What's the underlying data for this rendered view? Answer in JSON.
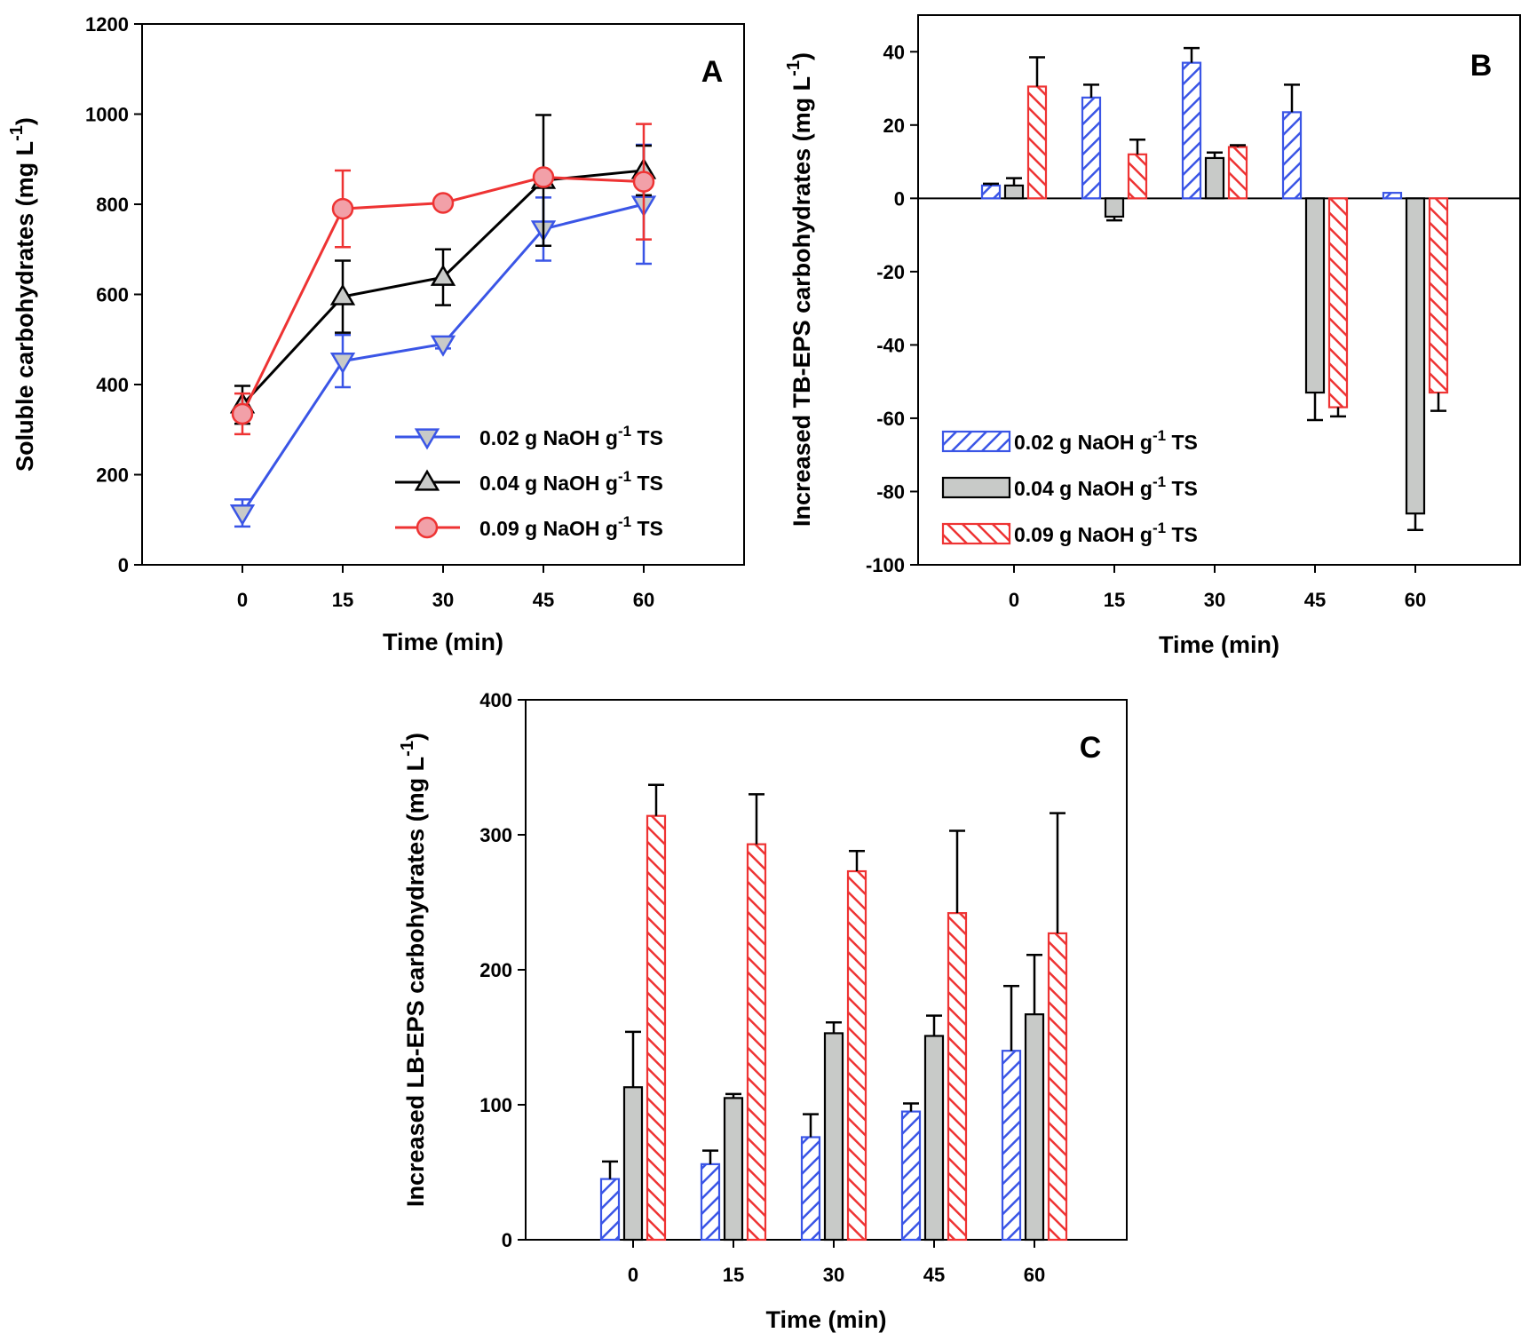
{
  "chart_data": [
    {
      "panel": "A",
      "type": "line",
      "xlabel": "Time (min)",
      "ylabel": "Soluble carbohydrates (mg L",
      "ylabel_sup": "-1",
      "ylabel_close": ")",
      "x": [
        0,
        15,
        30,
        45,
        60
      ],
      "xlim": [
        -15,
        75
      ],
      "ylim": [
        0,
        1200
      ],
      "yticks": [
        0,
        200,
        400,
        600,
        800,
        1000,
        1200
      ],
      "grid": false,
      "legend_position": "bottom-right",
      "series": [
        {
          "name": "0.02 g NaOH g",
          "name_sup": "-1",
          "name_tail": " TS",
          "color": "#3a55e6",
          "fill": "#c8cac8",
          "marker": "triangle-down",
          "values": [
            115,
            452,
            490,
            745,
            800
          ],
          "errors": [
            30,
            58,
            10,
            70,
            132
          ]
        },
        {
          "name": "0.04 g NaOH g",
          "name_sup": "-1",
          "name_tail": " TS",
          "color": "#000000",
          "fill": "#c8cac8",
          "marker": "triangle-up",
          "values": [
            355,
            595,
            638,
            853,
            875
          ],
          "errors": [
            42,
            80,
            62,
            145,
            55
          ]
        },
        {
          "name": "0.09 g NaOH g",
          "name_sup": "-1",
          "name_tail": " TS",
          "color": "#ee3333",
          "fill": "#f2a0a8",
          "marker": "circle",
          "values": [
            335,
            790,
            803,
            860,
            850
          ],
          "errors": [
            45,
            85,
            12,
            12,
            128
          ]
        }
      ]
    },
    {
      "panel": "B",
      "type": "bar",
      "xlabel": "Time (min)",
      "ylabel": "Increased TB-EPS carbohydrates (mg L",
      "ylabel_sup": "-1",
      "ylabel_close": ")",
      "categories": [
        "0",
        "15",
        "30",
        "45",
        "60"
      ],
      "ylim": [
        -100,
        50
      ],
      "yticks": [
        -100,
        -80,
        -60,
        -40,
        -20,
        0,
        20,
        40
      ],
      "grid": false,
      "legend_position": "bottom-left",
      "series": [
        {
          "name": "0.02 g NaOH g",
          "name_sup": "-1",
          "name_tail": " TS",
          "color": "#3a55e6",
          "pattern": "hatch-right",
          "values": [
            3.5,
            27.5,
            37,
            23.5,
            1.5
          ],
          "errors": [
            0.5,
            3.5,
            4,
            7.5,
            0
          ]
        },
        {
          "name": "0.04 g NaOH g",
          "name_sup": "-1",
          "name_tail": " TS",
          "color": "#000000",
          "fill": "#c8cac8",
          "pattern": "solid",
          "values": [
            3.5,
            -5,
            11,
            -53,
            -86
          ],
          "errors": [
            2,
            1,
            1.5,
            7.5,
            4.5
          ]
        },
        {
          "name": "0.09 g NaOH g",
          "name_sup": "-1",
          "name_tail": " TS",
          "color": "#ee3333",
          "pattern": "hatch-left",
          "values": [
            30.5,
            12,
            14,
            -57,
            -53
          ],
          "errors": [
            8,
            4,
            0.5,
            2.5,
            5
          ]
        }
      ]
    },
    {
      "panel": "C",
      "type": "bar",
      "xlabel": "Time (min)",
      "ylabel": "Increased LB-EPS carbohydrates (mg L",
      "ylabel_sup": "-1",
      "ylabel_close": ")",
      "categories": [
        "0",
        "15",
        "30",
        "45",
        "60"
      ],
      "ylim": [
        0,
        400
      ],
      "yticks": [
        0,
        100,
        200,
        300,
        400
      ],
      "grid": false,
      "series": [
        {
          "name": "0.02 g NaOH g",
          "name_sup": "-1",
          "name_tail": " TS",
          "color": "#3a55e6",
          "pattern": "hatch-right",
          "values": [
            45,
            56,
            76,
            95,
            140
          ],
          "errors": [
            13,
            10,
            17,
            6,
            48
          ]
        },
        {
          "name": "0.04 g NaOH g",
          "name_sup": "-1",
          "name_tail": " TS",
          "color": "#000000",
          "fill": "#c8cac8",
          "pattern": "solid",
          "values": [
            113,
            105,
            153,
            151,
            167
          ],
          "errors": [
            41,
            3,
            8,
            15,
            44
          ]
        },
        {
          "name": "0.09 g NaOH g",
          "name_sup": "-1",
          "name_tail": " TS",
          "color": "#ee3333",
          "pattern": "hatch-left",
          "values": [
            314,
            293,
            273,
            242,
            227
          ],
          "errors": [
            23,
            37,
            15,
            61,
            89
          ]
        }
      ]
    }
  ]
}
